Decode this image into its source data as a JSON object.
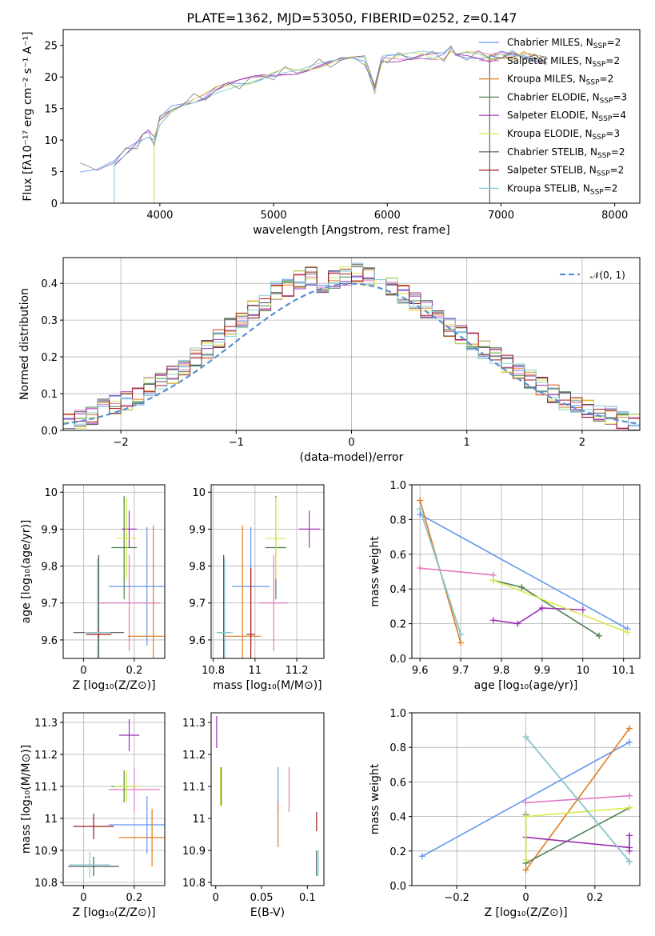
{
  "title": "PLATE=1362, MJD=53050, FIBERID=0252, z=0.147",
  "chart_data": [
    {
      "id": "spectrum",
      "type": "line",
      "xlabel": "wavelength [Angstrom, rest frame]",
      "ylabel": "Flux [fλ10⁻¹⁷ erg cm⁻² s⁻¹ A⁻¹]",
      "xlim": [
        3150,
        8220
      ],
      "ylim": [
        0,
        27.5
      ],
      "xticks": [
        4000,
        5000,
        6000,
        7000,
        8000
      ],
      "yticks": [
        0,
        5,
        10,
        15,
        20,
        25
      ],
      "grid": false,
      "legend_position": "top-right",
      "data_points": [
        [
          3300,
          5.5
        ],
        [
          3450,
          5.8
        ],
        [
          3600,
          6.5
        ],
        [
          3700,
          8.0
        ],
        [
          3800,
          9.5
        ],
        [
          3850,
          10.5
        ],
        [
          3900,
          11
        ],
        [
          3950,
          10
        ],
        [
          4000,
          13
        ],
        [
          4100,
          15
        ],
        [
          4200,
          16
        ],
        [
          4300,
          16.5
        ],
        [
          4400,
          17
        ],
        [
          4500,
          18
        ],
        [
          4600,
          18.5
        ],
        [
          4700,
          19
        ],
        [
          4800,
          19.5
        ],
        [
          4900,
          20
        ],
        [
          5000,
          20.3
        ],
        [
          5100,
          20.8
        ],
        [
          5200,
          21
        ],
        [
          5300,
          21.5
        ],
        [
          5400,
          22
        ],
        [
          5500,
          22.3
        ],
        [
          5600,
          22.5
        ],
        [
          5700,
          22.6
        ],
        [
          5800,
          22.8
        ],
        [
          5890,
          18
        ],
        [
          5950,
          22.7
        ],
        [
          6000,
          22.9
        ],
        [
          6100,
          23
        ],
        [
          6200,
          23.2
        ],
        [
          6300,
          23.5
        ],
        [
          6400,
          23.3
        ],
        [
          6500,
          23.3
        ],
        [
          6560,
          24.3
        ],
        [
          6600,
          23.3
        ],
        [
          6700,
          23.5
        ],
        [
          6800,
          23.4
        ],
        [
          6900,
          23
        ],
        [
          7000,
          23.5
        ],
        [
          7100,
          23.3
        ],
        [
          7200,
          23.5
        ],
        [
          7300,
          23
        ],
        [
          7400,
          22.5
        ]
      ],
      "model_starts": [
        3540,
        3920,
        6810,
        7420
      ],
      "series": [
        {
          "name": "Chabrier MILES, N_SSP=2",
          "color": "#6495ed",
          "label_main": "Chabrier MILES, N",
          "label_sub": "SSP",
          "label_tail": "=2"
        },
        {
          "name": "Salpeter MILES, N_SSP=2",
          "color": "#e377c2",
          "label_main": "Salpeter MILES, N",
          "label_sub": "SSP",
          "label_tail": "=2"
        },
        {
          "name": "Kroupa MILES, N_SSP=2",
          "color": "#e07b1f",
          "label_main": "Kroupa MILES, N",
          "label_sub": "SSP",
          "label_tail": "=2"
        },
        {
          "name": "Chabrier ELODIE, N_SSP=3",
          "color": "#4f7f4f",
          "label_main": "Chabrier ELODIE, N",
          "label_sub": "SSP",
          "label_tail": "=3"
        },
        {
          "name": "Salpeter ELODIE, N_SSP=4",
          "color": "#9b30b4",
          "label_main": "Salpeter ELODIE, N",
          "label_sub": "SSP",
          "label_tail": "=4"
        },
        {
          "name": "Kroupa ELODIE, N_SSP=3",
          "color": "#d7ec4b",
          "label_main": "Kroupa ELODIE, N",
          "label_sub": "SSP",
          "label_tail": "=3"
        },
        {
          "name": "Chabrier STELIB, N_SSP=2",
          "color": "#505050",
          "label_main": "Chabrier STELIB, N",
          "label_sub": "SSP",
          "label_tail": "=2"
        },
        {
          "name": "Salpeter STELIB, N_SSP=2",
          "color": "#a01a1a",
          "label_main": "Salpeter STELIB, N",
          "label_sub": "SSP",
          "label_tail": "=2"
        },
        {
          "name": "Kroupa STELIB, N_SSP=2",
          "color": "#87cfd6",
          "label_main": "Kroupa STELIB, N",
          "label_sub": "SSP",
          "label_tail": "=2"
        }
      ]
    },
    {
      "id": "residuals",
      "type": "histogram",
      "xlabel": "(data-model)/error",
      "ylabel": "Normed distribution",
      "xlim": [
        -2.5,
        2.5
      ],
      "ylim": [
        0,
        0.47
      ],
      "xticks": [
        -2,
        -1,
        0,
        1,
        2
      ],
      "yticks": [
        0.0,
        0.1,
        0.2,
        0.3,
        0.4
      ],
      "grid": true,
      "legend_position": "top-right",
      "legend_label": "𝒩(0, 1)",
      "gaussian_color": "#5b8fd0",
      "bin_width": 0.1,
      "representative_values": [
        0.02,
        0.03,
        0.04,
        0.06,
        0.07,
        0.08,
        0.09,
        0.12,
        0.13,
        0.15,
        0.17,
        0.2,
        0.22,
        0.25,
        0.28,
        0.3,
        0.33,
        0.35,
        0.38,
        0.39,
        0.41,
        0.42,
        0.4,
        0.41,
        0.42,
        0.43,
        0.42,
        0.41,
        0.39,
        0.37,
        0.35,
        0.33,
        0.3,
        0.28,
        0.26,
        0.24,
        0.22,
        0.2,
        0.18,
        0.16,
        0.14,
        0.12,
        0.1,
        0.08,
        0.07,
        0.06,
        0.05,
        0.04,
        0.03,
        0.02
      ]
    },
    {
      "id": "age_vs_Z",
      "type": "scatter",
      "xlabel": "Z [log₁₀(Z/Z⊙)]",
      "ylabel": "age  [log₁₀(age/yr)]",
      "xlim": [
        -0.08,
        0.32
      ],
      "ylim": [
        9.55,
        10.02
      ],
      "xticks": [
        0.0,
        0.2
      ],
      "yticks": [
        9.6,
        9.7,
        9.8,
        9.9,
        10.0
      ],
      "grid": true,
      "points": [
        {
          "color": "#6495ed",
          "x": 0.25,
          "xe": 0.15,
          "y": 9.745,
          "ye": 0.16
        },
        {
          "color": "#e377c2",
          "x": 0.18,
          "xe": 0.12,
          "y": 9.7,
          "ye": 0.13
        },
        {
          "color": "#e07b1f",
          "x": 0.275,
          "xe": 0.1,
          "y": 9.61,
          "ye": 0.3
        },
        {
          "color": "#4f7f4f",
          "x": 0.16,
          "xe": 0.05,
          "y": 9.85,
          "ye": 0.14
        },
        {
          "color": "#9b30b4",
          "x": 0.18,
          "xe": 0.03,
          "y": 9.9,
          "ye": 0.05
        },
        {
          "color": "#d7ec4b",
          "x": 0.17,
          "xe": 0.04,
          "y": 9.875,
          "ye": 0.11
        },
        {
          "color": "#505050",
          "x": 0.06,
          "xe": 0.1,
          "y": 9.62,
          "ye": 0.21
        },
        {
          "color": "#a01a1a",
          "x": 0.06,
          "xe": 0.05,
          "y": 9.615,
          "ye": 0.01
        },
        {
          "color": "#87cfd6",
          "x": 0.055,
          "xe": 0.05,
          "y": 9.62,
          "ye": 0.2
        }
      ]
    },
    {
      "id": "age_vs_mass",
      "type": "scatter",
      "xlabel": "mass [log₁₀(M/M⊙)]",
      "ylabel": "",
      "xlim": [
        10.79,
        11.33
      ],
      "ylim": [
        9.55,
        10.02
      ],
      "xticks": [
        10.8,
        11.0,
        11.2
      ],
      "yticks": [
        9.6,
        9.7,
        9.8,
        9.9,
        10.0
      ],
      "grid": true,
      "points": [
        {
          "color": "#6495ed",
          "x": 10.98,
          "xe": 0.09,
          "y": 9.745,
          "ye": 0.16
        },
        {
          "color": "#e377c2",
          "x": 11.09,
          "xe": 0.07,
          "y": 9.7,
          "ye": 0.13
        },
        {
          "color": "#e07b1f",
          "x": 10.94,
          "xe": 0.09,
          "y": 9.61,
          "ye": 0.3
        },
        {
          "color": "#4f7f4f",
          "x": 11.1,
          "xe": 0.05,
          "y": 9.85,
          "ye": 0.14
        },
        {
          "color": "#9b30b4",
          "x": 11.26,
          "xe": 0.05,
          "y": 9.9,
          "ye": 0.05
        },
        {
          "color": "#d7ec4b",
          "x": 11.1,
          "xe": 0.05,
          "y": 9.875,
          "ye": 0.11
        },
        {
          "color": "#505050",
          "x": 10.85,
          "xe": 0.03,
          "y": 9.62,
          "ye": 0.21
        },
        {
          "color": "#a01a1a",
          "x": 10.98,
          "xe": 0.02,
          "y": 9.615,
          "ye": 0.18
        },
        {
          "color": "#87cfd6",
          "x": 10.855,
          "xe": 0.04,
          "y": 9.62,
          "ye": 0.2
        }
      ]
    },
    {
      "id": "weight_vs_age",
      "type": "line",
      "xlabel": "age  [log₁₀(age/yr)]",
      "ylabel": "mass weight",
      "xlim": [
        9.58,
        10.14
      ],
      "ylim": [
        0,
        1.0
      ],
      "xticks": [
        9.6,
        9.7,
        9.8,
        9.9,
        10.0,
        10.1
      ],
      "yticks": [
        0.0,
        0.2,
        0.4,
        0.6,
        0.8,
        1.0
      ],
      "grid": true,
      "series": [
        {
          "color": "#6495ed",
          "x": [
            9.6,
            10.11
          ],
          "y": [
            0.83,
            0.17
          ]
        },
        {
          "color": "#e377c2",
          "x": [
            9.6,
            9.78
          ],
          "y": [
            0.52,
            0.48
          ]
        },
        {
          "color": "#e07b1f",
          "x": [
            9.6,
            9.7
          ],
          "y": [
            0.91,
            0.09
          ]
        },
        {
          "color": "#4f7f4f",
          "x": [
            9.78,
            9.85,
            10.04
          ],
          "y": [
            0.45,
            0.41,
            0.13
          ]
        },
        {
          "color": "#9b30b4",
          "x": [
            9.78,
            9.84,
            9.9,
            10.0
          ],
          "y": [
            0.22,
            0.2,
            0.29,
            0.28
          ]
        },
        {
          "color": "#d7ec4b",
          "x": [
            9.78,
            10.11
          ],
          "y": [
            0.45,
            0.15
          ]
        },
        {
          "color": "#505050",
          "x": [
            9.6,
            9.7
          ],
          "y": [
            0.86,
            0.14
          ]
        },
        {
          "color": "#87cfd6",
          "x": [
            9.6,
            9.7
          ],
          "y": [
            0.86,
            0.14
          ]
        }
      ]
    },
    {
      "id": "mass_vs_Z",
      "type": "scatter",
      "xlabel": "Z [log₁₀(Z/Z⊙)]",
      "ylabel": "mass [log₁₀(M/M⊙)]",
      "xlim": [
        -0.08,
        0.32
      ],
      "ylim": [
        10.79,
        11.33
      ],
      "xticks": [
        0.0,
        0.2
      ],
      "yticks": [
        10.8,
        10.9,
        11.0,
        11.1,
        11.2,
        11.3
      ],
      "grid": true,
      "points": [
        {
          "color": "#6495ed",
          "x": 0.25,
          "xe": 0.15,
          "y": 10.98,
          "ye": 0.09
        },
        {
          "color": "#e377c2",
          "x": 0.2,
          "xe": 0.1,
          "y": 11.09,
          "ye": 0.07
        },
        {
          "color": "#e07b1f",
          "x": 0.27,
          "xe": 0.13,
          "y": 10.94,
          "ye": 0.09
        },
        {
          "color": "#4f7f4f",
          "x": 0.16,
          "xe": 0.05,
          "y": 11.1,
          "ye": 0.05
        },
        {
          "color": "#9b30b4",
          "x": 0.18,
          "xe": 0.04,
          "y": 11.26,
          "ye": 0.05
        },
        {
          "color": "#d7ec4b",
          "x": 0.17,
          "xe": 0.05,
          "y": 11.1,
          "ye": 0.05
        },
        {
          "color": "#505050",
          "x": 0.04,
          "xe": 0.1,
          "y": 10.85,
          "ye": 0.03
        },
        {
          "color": "#a01a1a",
          "x": 0.04,
          "xe": 0.08,
          "y": 10.975,
          "ye": 0.04
        },
        {
          "color": "#87cfd6",
          "x": 0.025,
          "xe": 0.08,
          "y": 10.855,
          "ye": 0.04
        }
      ]
    },
    {
      "id": "mass_vs_ebv",
      "type": "scatter",
      "xlabel": "E(B-V)",
      "ylabel": "",
      "xlim": [
        -0.005,
        0.118
      ],
      "ylim": [
        10.79,
        11.33
      ],
      "xticks": [
        0.0,
        0.05,
        0.1
      ],
      "yticks": [
        10.8,
        10.9,
        11.0,
        11.1,
        11.2,
        11.3
      ],
      "grid": false,
      "points": [
        {
          "color": "#6495ed",
          "x": 0.068,
          "xe": 0,
          "y": 11.09,
          "ye": 0.07
        },
        {
          "color": "#e377c2",
          "x": 0.08,
          "xe": 0,
          "y": 11.09,
          "ye": 0.07
        },
        {
          "color": "#e07b1f",
          "x": 0.068,
          "xe": 0,
          "y": 10.98,
          "ye": 0.07
        },
        {
          "color": "#4f7f4f",
          "x": 0.006,
          "xe": 0,
          "y": 11.1,
          "ye": 0.06
        },
        {
          "color": "#9b30b4",
          "x": 0.001,
          "xe": 0,
          "y": 11.27,
          "ye": 0.05
        },
        {
          "color": "#d7ec4b",
          "x": 0.005,
          "xe": 0,
          "y": 11.1,
          "ye": 0.06
        },
        {
          "color": "#505050",
          "x": 0.11,
          "xe": 0,
          "y": 10.86,
          "ye": 0.04
        },
        {
          "color": "#a01a1a",
          "x": 0.11,
          "xe": 0,
          "y": 10.99,
          "ye": 0.03
        },
        {
          "color": "#87cfd6",
          "x": 0.112,
          "xe": 0,
          "y": 10.86,
          "ye": 0.04
        }
      ]
    },
    {
      "id": "weight_vs_Z",
      "type": "line",
      "xlabel": "Z [log₁₀(Z/Z⊙)]",
      "ylabel": "mass weight",
      "xlim": [
        -0.33,
        0.33
      ],
      "ylim": [
        0,
        1.0
      ],
      "xticks": [
        -0.2,
        0.0,
        0.2
      ],
      "yticks": [
        0.0,
        0.2,
        0.4,
        0.6,
        0.8,
        1.0
      ],
      "grid": true,
      "series": [
        {
          "color": "#6495ed",
          "x": [
            -0.3,
            0.3
          ],
          "y": [
            0.17,
            0.83
          ]
        },
        {
          "color": "#e377c2",
          "x": [
            0.0,
            0.3
          ],
          "y": [
            0.48,
            0.52
          ]
        },
        {
          "color": "#e07b1f",
          "x": [
            0.0,
            0.3
          ],
          "y": [
            0.09,
            0.91
          ]
        },
        {
          "color": "#4f7f4f",
          "x": [
            0.0,
            0.0,
            0.3
          ],
          "y": [
            0.41,
            0.13,
            0.45
          ]
        },
        {
          "color": "#9b30b4",
          "x": [
            0.0,
            0.3,
            0.3,
            0.3
          ],
          "y": [
            0.28,
            0.22,
            0.29,
            0.2
          ]
        },
        {
          "color": "#d7ec4b",
          "x": [
            0.0,
            0.0,
            0.3
          ],
          "y": [
            0.15,
            0.4,
            0.45
          ]
        },
        {
          "color": "#505050",
          "x": [
            0.0,
            0.3
          ],
          "y": [
            0.86,
            0.14
          ]
        },
        {
          "color": "#87cfd6",
          "x": [
            0.0,
            0.3
          ],
          "y": [
            0.86,
            0.14
          ]
        }
      ]
    }
  ]
}
